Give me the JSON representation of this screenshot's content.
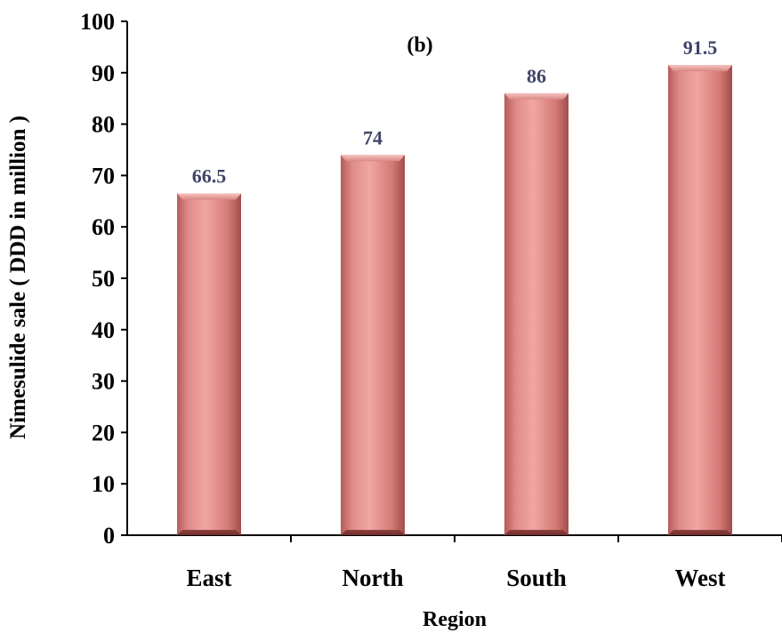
{
  "chart_data": {
    "type": "bar",
    "title": "",
    "annotation": "(b)",
    "xlabel": "Region",
    "ylabel": "Nimesulide sale ( DDD in million )",
    "categories": [
      "East",
      "North",
      "South",
      "West"
    ],
    "values": [
      66.5,
      74,
      86,
      91.5
    ],
    "data_labels": [
      "66.5",
      "74",
      "86",
      "91.5"
    ],
    "yticks": [
      "0",
      "10",
      "20",
      "30",
      "40",
      "50",
      "60",
      "70",
      "80",
      "90",
      "100"
    ],
    "ylim": [
      0,
      100
    ],
    "grid": false,
    "legend": "none",
    "colors": {
      "bar_light": "#efa3a0",
      "bar_mid": "#d97e7b",
      "bar_dark": "#9c4a48",
      "label": "#3f4468",
      "axis": "#000000"
    }
  }
}
